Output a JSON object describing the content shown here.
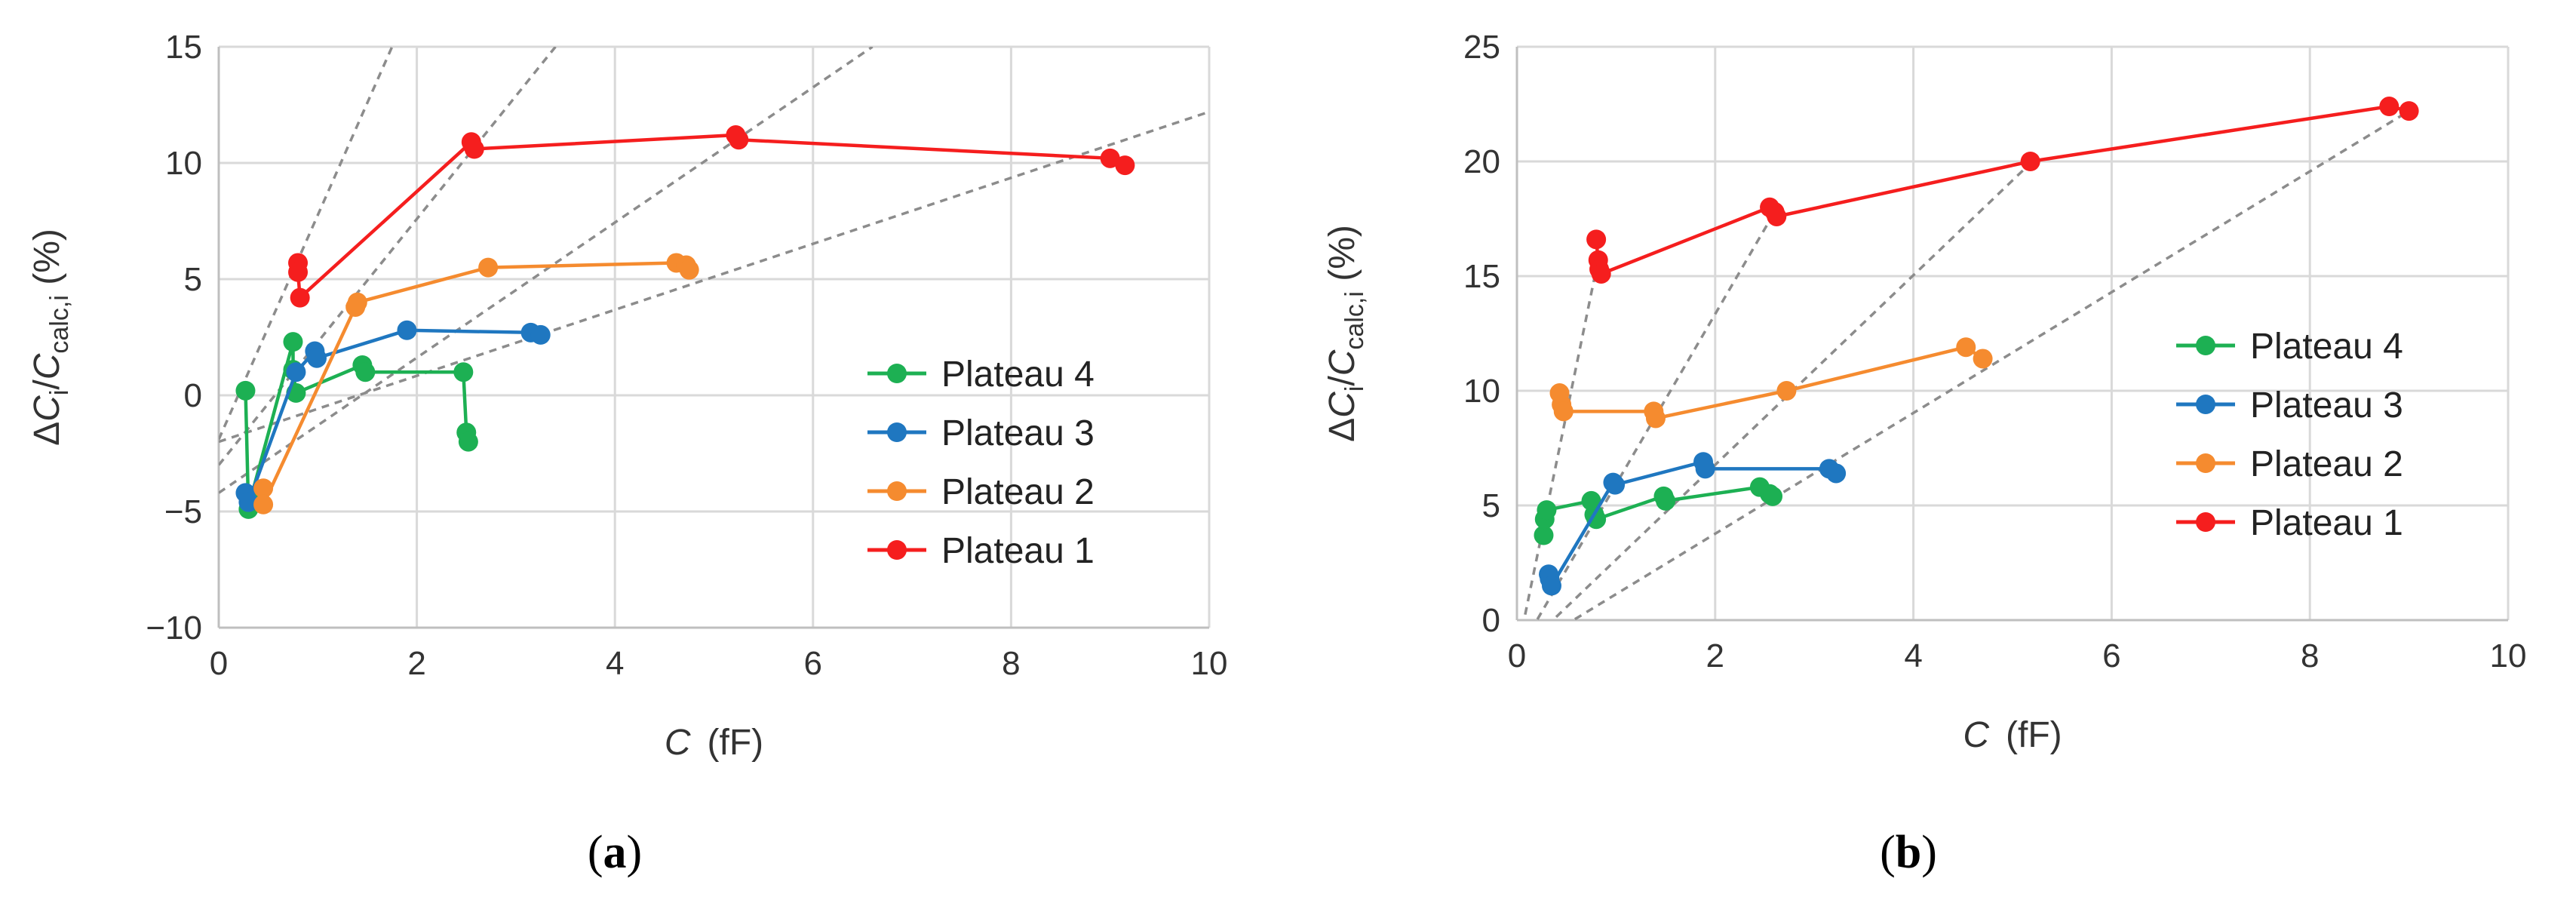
{
  "chart_data": [
    {
      "type": "scatter",
      "panel_label": "(a)",
      "panel_letter": "a",
      "xlabel_var": "C",
      "xlabel_unit": "(fF)",
      "ylabel": "ΔCi/Ccalc,i (%)",
      "ylabel_parts": {
        "delta": "Δ",
        "num": "C",
        "num_sub": "i",
        "slash": "/",
        "den": "C",
        "den_sub": "calc,i",
        "unit": "(%)"
      },
      "xlim": [
        0,
        10
      ],
      "ylim": [
        -10,
        15
      ],
      "xticks": [
        0,
        2,
        4,
        6,
        8,
        10
      ],
      "yticks": [
        -10,
        -5,
        0,
        5,
        10,
        15
      ],
      "xtick_labels": [
        "0",
        "2",
        "4",
        "6",
        "8",
        "10"
      ],
      "ytick_labels": [
        "−10",
        "−5",
        "0",
        "5",
        "10",
        "15"
      ],
      "grid": true,
      "legend_position": "lower-right",
      "guide_lines": [
        {
          "x1": 0,
          "y1": -1.9,
          "x2": 1.75,
          "y2": 15
        },
        {
          "x1": 0,
          "y1": -3.0,
          "x2": 3.4,
          "y2": 15
        },
        {
          "x1": 0,
          "y1": -4.2,
          "x2": 6.6,
          "y2": 15
        },
        {
          "x1": 0,
          "y1": -2.0,
          "x2": 10,
          "y2": 12.2
        }
      ],
      "series": [
        {
          "name": "Plateau 4",
          "color": "#1db053",
          "points": [
            [
              0.27,
              0.2
            ],
            [
              0.3,
              -4.9
            ],
            [
              0.32,
              -4.5
            ],
            [
              0.75,
              2.3
            ],
            [
              0.75,
              1.1
            ],
            [
              0.78,
              0.1
            ],
            [
              1.45,
              1.3
            ],
            [
              1.48,
              1.0
            ],
            [
              2.47,
              1.0
            ],
            [
              2.5,
              -1.6
            ],
            [
              2.52,
              -2.0
            ]
          ]
        },
        {
          "name": "Plateau 3",
          "color": "#1f77c0",
          "points": [
            [
              0.27,
              -4.2
            ],
            [
              0.3,
              -4.6
            ],
            [
              0.78,
              1.0
            ],
            [
              0.97,
              1.9
            ],
            [
              0.99,
              1.6
            ],
            [
              1.9,
              2.8
            ],
            [
              3.15,
              2.7
            ],
            [
              3.25,
              2.6
            ]
          ]
        },
        {
          "name": "Plateau 2",
          "color": "#f58b2f",
          "points": [
            [
              0.45,
              -4.0
            ],
            [
              0.45,
              -4.7
            ],
            [
              1.38,
              3.8
            ],
            [
              1.4,
              4.0
            ],
            [
              2.72,
              5.5
            ],
            [
              4.62,
              5.7
            ],
            [
              4.72,
              5.6
            ],
            [
              4.75,
              5.4
            ]
          ]
        },
        {
          "name": "Plateau 1",
          "color": "#f51e1e",
          "points": [
            [
              0.8,
              5.7
            ],
            [
              0.8,
              5.3
            ],
            [
              0.82,
              4.2
            ],
            [
              2.55,
              10.9
            ],
            [
              2.58,
              10.6
            ],
            [
              5.22,
              11.2
            ],
            [
              5.25,
              11.0
            ],
            [
              9.0,
              10.2
            ],
            [
              9.15,
              9.9
            ]
          ]
        }
      ]
    },
    {
      "type": "scatter",
      "panel_label": "(b)",
      "panel_letter": "b",
      "xlabel_var": "C",
      "xlabel_unit": "(fF)",
      "ylabel": "ΔCi/Ccalc,i (%)",
      "ylabel_parts": {
        "delta": "Δ",
        "num": "C",
        "num_sub": "i",
        "slash": "/",
        "den": "C",
        "den_sub": "calc,i",
        "unit": "(%)"
      },
      "xlim": [
        0,
        10
      ],
      "ylim": [
        0,
        25
      ],
      "xticks": [
        0,
        2,
        4,
        6,
        8,
        10
      ],
      "yticks": [
        0,
        5,
        10,
        15,
        20,
        25
      ],
      "xtick_labels": [
        "0",
        "2",
        "4",
        "6",
        "8",
        "10"
      ],
      "ytick_labels": [
        "0",
        "5",
        "10",
        "15",
        "20",
        "25"
      ],
      "grid": true,
      "legend_position": "center-right",
      "guide_lines": [
        {
          "x1": 0,
          "y1": -1.5,
          "x2": 0.8,
          "y2": 15.3
        },
        {
          "x1": 0,
          "y1": -1.5,
          "x2": 2.6,
          "y2": 17.8
        },
        {
          "x1": 0,
          "y1": -1.5,
          "x2": 5.2,
          "y2": 20.0
        },
        {
          "x1": 0,
          "y1": -1.5,
          "x2": 9.0,
          "y2": 22.2
        }
      ],
      "series": [
        {
          "name": "Plateau 4",
          "color": "#1db053",
          "points": [
            [
              0.27,
              3.7
            ],
            [
              0.28,
              4.4
            ],
            [
              0.3,
              4.8
            ],
            [
              0.75,
              5.2
            ],
            [
              0.78,
              4.6
            ],
            [
              0.8,
              4.4
            ],
            [
              1.48,
              5.4
            ],
            [
              1.5,
              5.2
            ],
            [
              2.45,
              5.8
            ],
            [
              2.55,
              5.5
            ],
            [
              2.58,
              5.4
            ]
          ]
        },
        {
          "name": "Plateau 3",
          "color": "#1f77c0",
          "points": [
            [
              0.32,
              2.0
            ],
            [
              0.33,
              1.8
            ],
            [
              0.35,
              1.5
            ],
            [
              0.97,
              6.0
            ],
            [
              0.99,
              5.9
            ],
            [
              1.88,
              6.9
            ],
            [
              1.9,
              6.6
            ],
            [
              3.15,
              6.6
            ],
            [
              3.22,
              6.4
            ]
          ]
        },
        {
          "name": "Plateau 2",
          "color": "#f58b2f",
          "points": [
            [
              0.43,
              9.9
            ],
            [
              0.45,
              9.4
            ],
            [
              0.47,
              9.1
            ],
            [
              1.38,
              9.1
            ],
            [
              1.4,
              8.8
            ],
            [
              2.72,
              10.0
            ],
            [
              4.53,
              11.9
            ],
            [
              4.7,
              11.4
            ]
          ]
        },
        {
          "name": "Plateau 1",
          "color": "#f51e1e",
          "points": [
            [
              0.8,
              16.6
            ],
            [
              0.82,
              15.7
            ],
            [
              0.83,
              15.3
            ],
            [
              0.85,
              15.1
            ],
            [
              2.55,
              18.0
            ],
            [
              2.6,
              17.8
            ],
            [
              2.62,
              17.6
            ],
            [
              5.18,
              20.0
            ],
            [
              8.8,
              22.4
            ],
            [
              9.0,
              22.2
            ]
          ]
        }
      ]
    }
  ]
}
